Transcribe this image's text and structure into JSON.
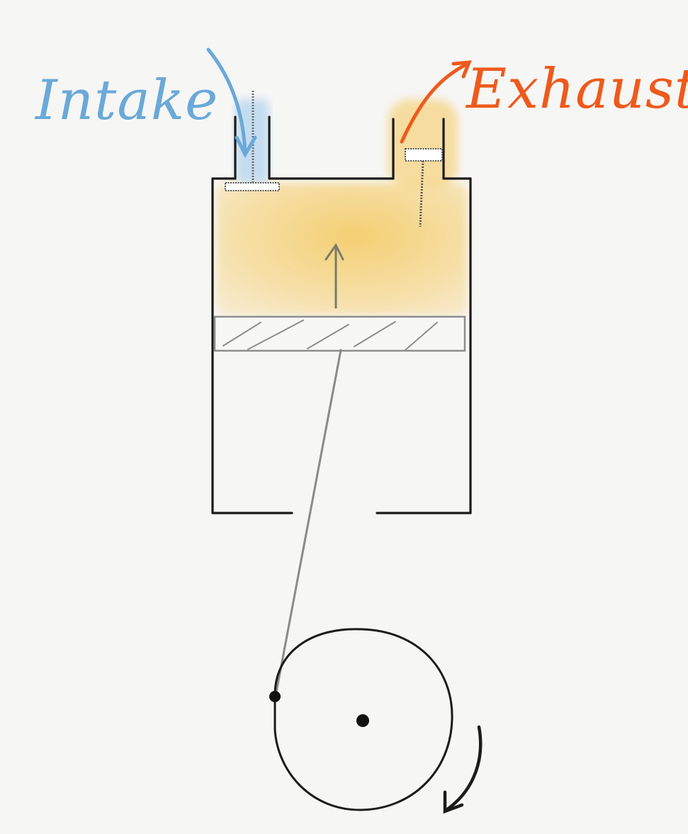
{
  "labels": {
    "intake": "Intake",
    "exhaust": "Exhaust"
  },
  "colors": {
    "background": "#f6f6f5",
    "intake": "#6aa9d8",
    "intake_wash": "#bcd8ee",
    "exhaust": "#ee5a1c",
    "gas_fill": "#f5cf6e",
    "ink": "#1b1b1b",
    "rod": "#8a8a8a",
    "piston": "#8d8d8d"
  }
}
